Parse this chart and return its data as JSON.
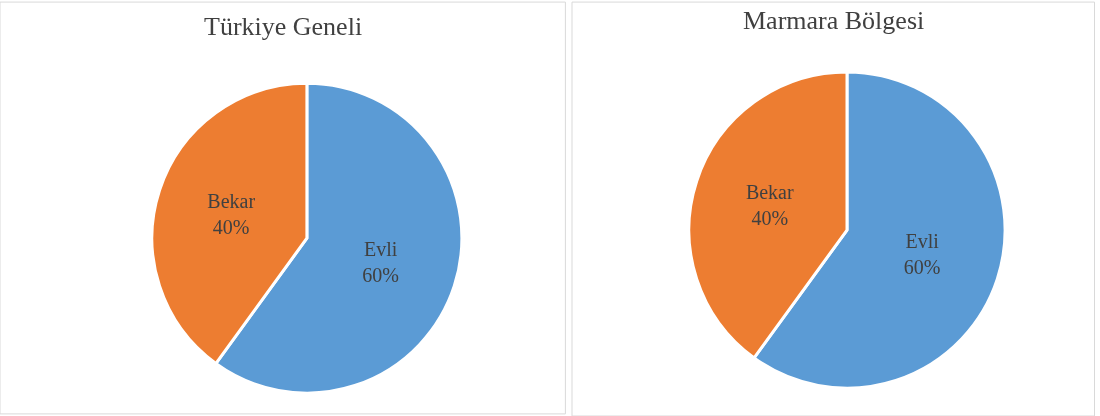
{
  "chart_data": [
    {
      "type": "pie",
      "title": "Türkiye Geneli",
      "categories": [
        "Evli",
        "Bekar"
      ],
      "values": [
        60,
        40
      ],
      "colors": [
        "#5b9bd5",
        "#ed7d31"
      ],
      "value_labels": [
        "60%",
        "40%"
      ],
      "legend": false
    },
    {
      "type": "pie",
      "title": "Marmara Bölgesi",
      "categories": [
        "Evli",
        "Bekar"
      ],
      "values": [
        60,
        40
      ],
      "colors": [
        "#5b9bd5",
        "#ed7d31"
      ],
      "value_labels": [
        "60%",
        "40%"
      ],
      "legend": false
    }
  ]
}
